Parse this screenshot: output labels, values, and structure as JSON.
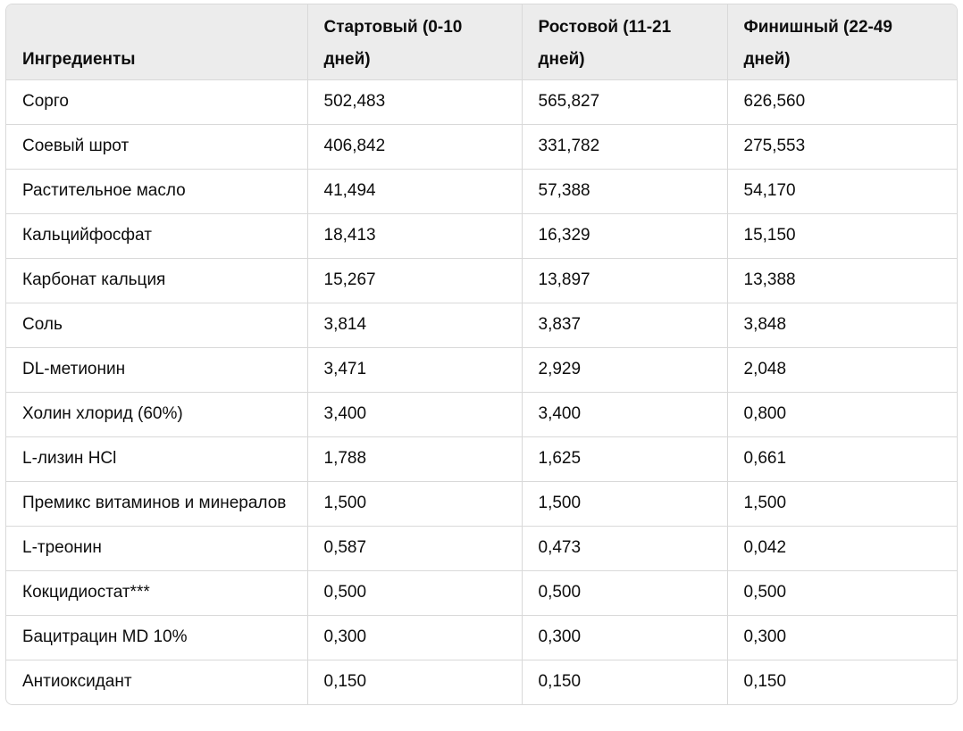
{
  "table": {
    "headers": [
      "Ингредиенты",
      "Стартовый (0-10 дней)",
      "Ростовой (11-21 дней)",
      "Финишный (22-49 дней)"
    ],
    "rows": [
      [
        "Сорго",
        "502,483",
        "565,827",
        "626,560"
      ],
      [
        "Соевый шрот",
        "406,842",
        "331,782",
        "275,553"
      ],
      [
        "Растительное масло",
        "41,494",
        "57,388",
        "54,170"
      ],
      [
        "Кальцийфосфат",
        "18,413",
        "16,329",
        "15,150"
      ],
      [
        "Карбонат кальция",
        "15,267",
        "13,897",
        "13,388"
      ],
      [
        "Соль",
        "3,814",
        "3,837",
        "3,848"
      ],
      [
        "DL-метионин",
        "3,471",
        "2,929",
        "2,048"
      ],
      [
        "Холин хлорид (60%)",
        "3,400",
        "3,400",
        "0,800"
      ],
      [
        "L-лизин HCl",
        "1,788",
        "1,625",
        "0,661"
      ],
      [
        "Премикс витаминов и минералов",
        "1,500",
        "1,500",
        "1,500"
      ],
      [
        "L-треонин",
        "0,587",
        "0,473",
        "0,042"
      ],
      [
        "Кокцидиостат***",
        "0,500",
        "0,500",
        "0,500"
      ],
      [
        "Бацитрацин MD 10%",
        "0,300",
        "0,300",
        "0,300"
      ],
      [
        "Антиоксидант",
        "0,150",
        "0,150",
        "0,150"
      ]
    ]
  }
}
